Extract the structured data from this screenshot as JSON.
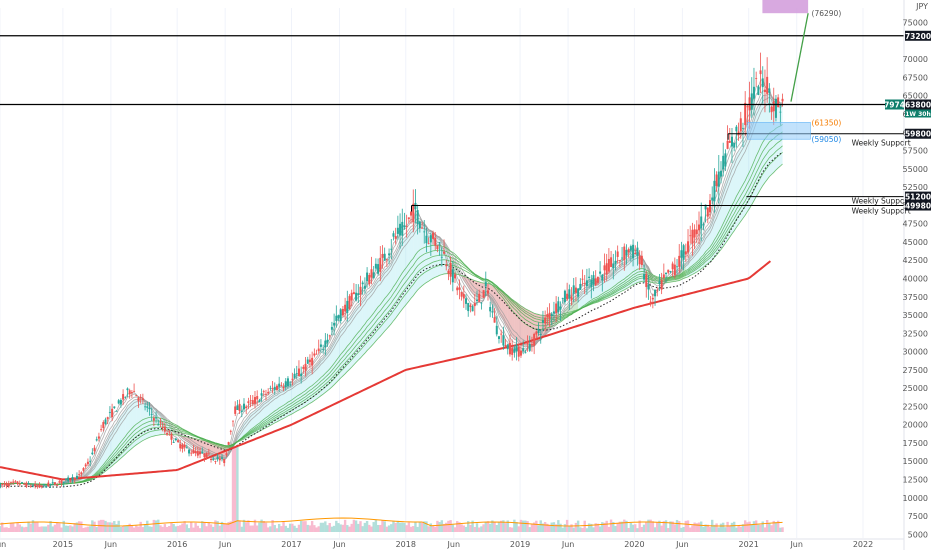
{
  "chart_data": {
    "type": "candlestick",
    "currency_label": "JPY",
    "y_axis": {
      "ylim": [
        4500,
        77000
      ],
      "ticks": [
        5000,
        7500,
        10000,
        12500,
        15000,
        17500,
        20000,
        22500,
        25000,
        27500,
        30000,
        32500,
        35000,
        37500,
        40000,
        42500,
        45000,
        47500,
        50000,
        52500,
        55000,
        57500,
        60000,
        62500,
        65000,
        67500,
        70000,
        75000
      ],
      "tick_labels": [
        "5000",
        "7500",
        "10000",
        "12500",
        "15000",
        "17500",
        "20000",
        "22500",
        "25000",
        "27500",
        "30000",
        "32500",
        "35000",
        "37500",
        "40000",
        "42500",
        "45000",
        "47500",
        "50000",
        "52500",
        "55000",
        "57500",
        "60000",
        "62500",
        "65000",
        "67500",
        "70000",
        "75000"
      ]
    },
    "x_axis": {
      "range": [
        2014.45,
        2022.35
      ],
      "ticks": [
        {
          "x": 2014.45,
          "label": "Jun"
        },
        {
          "x": 2015.0,
          "label": "2015"
        },
        {
          "x": 2015.42,
          "label": "Jun"
        },
        {
          "x": 2016.0,
          "label": "2016"
        },
        {
          "x": 2016.42,
          "label": "Jun"
        },
        {
          "x": 2017.0,
          "label": "2017"
        },
        {
          "x": 2017.42,
          "label": "Jun"
        },
        {
          "x": 2018.0,
          "label": "2018"
        },
        {
          "x": 2018.42,
          "label": "Jun"
        },
        {
          "x": 2019.0,
          "label": "2019"
        },
        {
          "x": 2019.42,
          "label": "Jun"
        },
        {
          "x": 2020.0,
          "label": "2020"
        },
        {
          "x": 2020.42,
          "label": "Jun"
        },
        {
          "x": 2021.0,
          "label": "2021"
        },
        {
          "x": 2021.42,
          "label": "Jun"
        },
        {
          "x": 2022.0,
          "label": "2022"
        }
      ]
    },
    "price_path": [
      [
        2014.45,
        11700
      ],
      [
        2014.6,
        12000
      ],
      [
        2014.8,
        11500
      ],
      [
        2015.0,
        12200
      ],
      [
        2015.15,
        13000
      ],
      [
        2015.25,
        15500
      ],
      [
        2015.35,
        20000
      ],
      [
        2015.5,
        23000
      ],
      [
        2015.6,
        25000
      ],
      [
        2015.75,
        22000
      ],
      [
        2015.85,
        20000
      ],
      [
        2016.0,
        17500
      ],
      [
        2016.1,
        16500
      ],
      [
        2016.25,
        15800
      ],
      [
        2016.42,
        15000
      ],
      [
        2016.5,
        22000
      ],
      [
        2016.6,
        22500
      ],
      [
        2016.75,
        24000
      ],
      [
        2016.9,
        25500
      ],
      [
        2017.0,
        26000
      ],
      [
        2017.1,
        27500
      ],
      [
        2017.25,
        30000
      ],
      [
        2017.4,
        34500
      ],
      [
        2017.5,
        36500
      ],
      [
        2017.65,
        39500
      ],
      [
        2017.8,
        42500
      ],
      [
        2017.9,
        45500
      ],
      [
        2018.0,
        47000
      ],
      [
        2018.08,
        49500
      ],
      [
        2018.18,
        46000
      ],
      [
        2018.3,
        44500
      ],
      [
        2018.42,
        40000
      ],
      [
        2018.5,
        37000
      ],
      [
        2018.6,
        36000
      ],
      [
        2018.7,
        38500
      ],
      [
        2018.8,
        33000
      ],
      [
        2018.9,
        30500
      ],
      [
        2019.0,
        30000
      ],
      [
        2019.1,
        31000
      ],
      [
        2019.25,
        35000
      ],
      [
        2019.4,
        37500
      ],
      [
        2019.55,
        39000
      ],
      [
        2019.7,
        40500
      ],
      [
        2019.85,
        42500
      ],
      [
        2019.95,
        44000
      ],
      [
        2020.05,
        43000
      ],
      [
        2020.15,
        36500
      ],
      [
        2020.25,
        39500
      ],
      [
        2020.4,
        42500
      ],
      [
        2020.5,
        45500
      ],
      [
        2020.6,
        48000
      ],
      [
        2020.7,
        52000
      ],
      [
        2020.8,
        57000
      ],
      [
        2020.92,
        60500
      ],
      [
        2021.0,
        63500
      ],
      [
        2021.08,
        66500
      ],
      [
        2021.15,
        67000
      ],
      [
        2021.22,
        63500
      ],
      [
        2021.3,
        63800
      ]
    ],
    "volume": {
      "ylim": [
        0,
        700000
      ]
    },
    "long_ma": [
      [
        2014.45,
        14200
      ],
      [
        2015.0,
        12500
      ],
      [
        2016.0,
        13800
      ],
      [
        2017.0,
        20000
      ],
      [
        2018.0,
        27500
      ],
      [
        2019.0,
        31000
      ],
      [
        2020.0,
        36000
      ],
      [
        2021.0,
        40000
      ],
      [
        2021.2,
        42500
      ]
    ],
    "horizontal_lines": [
      {
        "y": 73200,
        "label": "73200",
        "label_color": "#131722"
      },
      {
        "y": 63800,
        "label": "63800",
        "label_color": "#131722"
      },
      {
        "y": 59800,
        "label": "59800",
        "label_color": "#131722"
      },
      {
        "y": 51200,
        "label": "51200",
        "label_color": "#131722"
      },
      {
        "y": 49980,
        "label": "49980",
        "label_color": "#131722"
      }
    ],
    "current_badge": {
      "text": "7974",
      "sub": "1W 30h",
      "color": "#0f7f6c"
    },
    "annotations": [
      {
        "text": "Weekly Support"
      },
      {
        "text": "Weekly Support"
      },
      {
        "text": "Weekly Support"
      },
      {
        "text": "(61350)"
      },
      {
        "text": "(59050)"
      },
      {
        "text": "(76290)"
      }
    ],
    "colors": {
      "up": "#26a69a",
      "down": "#ef5350",
      "ribbon_green": "#4caf50",
      "ribbon_cyan": "#80deea",
      "ribbon_red": "#c62828",
      "long_ma": "#e53935",
      "target_box": "#ce93d8",
      "support_box": "#90caf9",
      "projection": "#43a047"
    }
  }
}
